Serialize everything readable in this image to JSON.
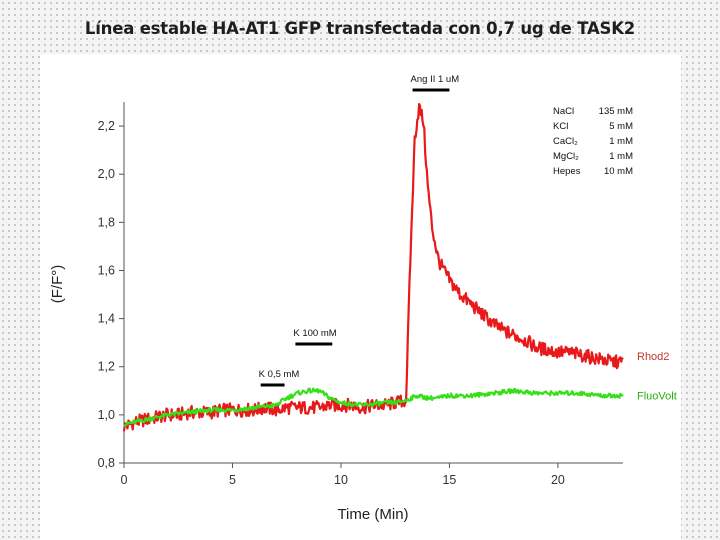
{
  "slide": {
    "title": "Línea estable HA-AT1 GFP transfectada con 0,7 ug de TASK2"
  },
  "colors": {
    "rhod2": "#e8191a",
    "fluovolt": "#35e018",
    "axis": "#555555",
    "label_red": "#c0392b",
    "label_green": "#27ae0f"
  },
  "chart_data": {
    "type": "line",
    "title": "",
    "xlabel": "Time (Min)",
    "ylabel": "(F/F°)",
    "xlim": [
      0,
      23
    ],
    "ylim": [
      0.8,
      2.3
    ],
    "xticks": [
      0,
      5,
      10,
      15,
      20
    ],
    "xtick_labels": [
      "0",
      "5",
      "10",
      "15",
      "20"
    ],
    "yticks": [
      0.8,
      1.0,
      1.2,
      1.4,
      1.6,
      1.8,
      2.0,
      2.2
    ],
    "ytick_labels": [
      "0,8",
      "1,0",
      "1,2",
      "1,4",
      "1,6",
      "1,8",
      "2,0",
      "2,2"
    ],
    "grid": false,
    "legend": "right, inline labels",
    "series": [
      {
        "name": "Rhod2",
        "color": "#e8191a",
        "x": [
          0,
          0.5,
          1,
          1.5,
          2,
          2.5,
          3,
          3.5,
          4,
          4.5,
          5,
          5.5,
          6,
          6.5,
          7,
          7.5,
          8,
          8.5,
          9,
          9.5,
          10,
          10.5,
          11,
          11.5,
          12,
          12.5,
          13,
          13.2,
          13.4,
          13.6,
          13.8,
          14,
          14.2,
          14.5,
          15,
          15.5,
          16,
          16.5,
          17,
          17.5,
          18,
          18.5,
          19,
          19.5,
          20,
          20.5,
          21,
          21.5,
          22,
          22.5,
          23
        ],
        "values": [
          0.95,
          0.97,
          0.98,
          0.99,
          1.0,
          1.0,
          1.01,
          1.01,
          1.01,
          1.02,
          1.02,
          1.02,
          1.02,
          1.03,
          1.02,
          1.03,
          1.03,
          1.03,
          1.03,
          1.04,
          1.04,
          1.04,
          1.03,
          1.04,
          1.04,
          1.05,
          1.06,
          1.65,
          2.15,
          2.28,
          2.22,
          1.95,
          1.78,
          1.64,
          1.56,
          1.5,
          1.46,
          1.42,
          1.38,
          1.35,
          1.33,
          1.31,
          1.28,
          1.27,
          1.26,
          1.26,
          1.25,
          1.24,
          1.23,
          1.22,
          1.22
        ]
      },
      {
        "name": "FluoVolt",
        "color": "#35e018",
        "x": [
          0,
          1,
          2,
          3,
          4,
          5,
          6,
          7,
          7.5,
          8,
          8.5,
          9,
          9.5,
          10,
          11,
          12,
          12.5,
          13,
          13.5,
          14,
          14.5,
          15,
          16,
          17,
          18,
          19,
          20,
          21,
          22,
          23
        ],
        "values": [
          0.96,
          0.98,
          1.0,
          1.01,
          1.02,
          1.02,
          1.03,
          1.04,
          1.07,
          1.09,
          1.1,
          1.1,
          1.07,
          1.05,
          1.04,
          1.05,
          1.05,
          1.06,
          1.08,
          1.07,
          1.07,
          1.08,
          1.08,
          1.09,
          1.1,
          1.09,
          1.09,
          1.09,
          1.08,
          1.08
        ]
      }
    ],
    "annotations": {
      "stimuli": [
        {
          "label": "K 0,5 mM",
          "start": 6.3,
          "end": 7.4
        },
        {
          "label": "K 100 mM",
          "start": 7.9,
          "end": 9.6
        },
        {
          "label": "Ang II 1 uM",
          "start": 13.3,
          "end": 15.0
        }
      ],
      "solution": [
        {
          "compound": "NaCl",
          "conc": "135 mM"
        },
        {
          "compound": "KCl",
          "conc": "5 mM"
        },
        {
          "compound": "CaCl₂",
          "conc": "1 mM"
        },
        {
          "compound": "MgCl₂",
          "conc": "1 mM"
        },
        {
          "compound": "Hepes",
          "conc": "10 mM"
        }
      ]
    }
  }
}
